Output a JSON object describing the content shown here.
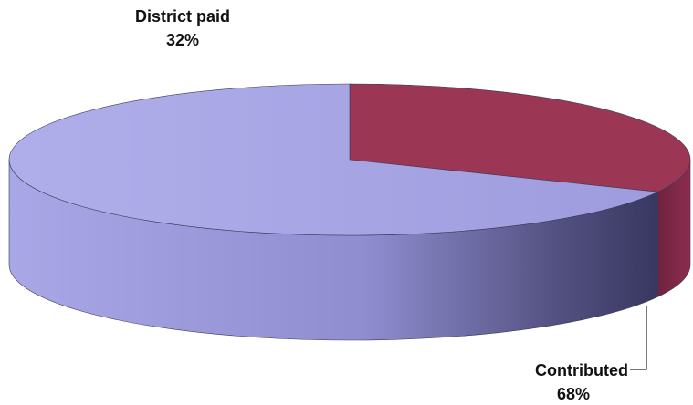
{
  "chart_data": {
    "type": "pie",
    "style": "3d",
    "title": "",
    "slices": [
      {
        "label": "District paid",
        "value": 32,
        "value_label": "32%",
        "color": "#9b3655"
      },
      {
        "label": "Contributed",
        "value": 68,
        "value_label": "68%",
        "color": "#a7a5e4"
      }
    ]
  }
}
